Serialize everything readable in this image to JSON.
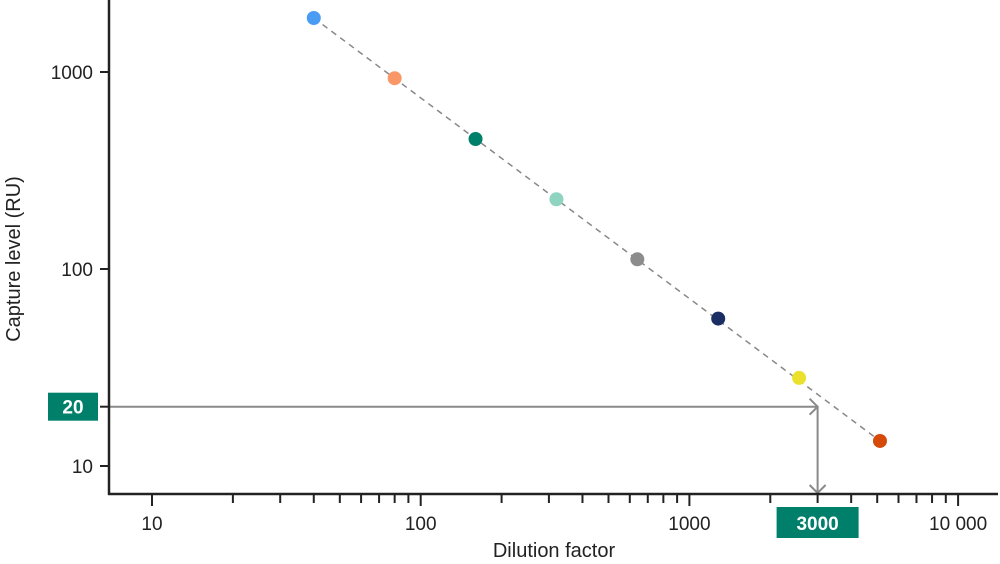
{
  "chart_data": {
    "type": "scatter",
    "title": "",
    "xlabel": "Dilution factor",
    "ylabel": "Capture level (RU)",
    "xscale": "log",
    "yscale": "log",
    "xlim": [
      7,
      14000
    ],
    "ylim": [
      6,
      2400
    ],
    "xticks": [
      {
        "value": 10,
        "label": "10"
      },
      {
        "value": 100,
        "label": "100"
      },
      {
        "value": 1000,
        "label": "1000"
      },
      {
        "value": 10000,
        "label": "10 000"
      }
    ],
    "yticks": [
      {
        "value": 10,
        "label": "10"
      },
      {
        "value": 100,
        "label": "100"
      },
      {
        "value": 1000,
        "label": "1000"
      }
    ],
    "grid": false,
    "points": [
      {
        "x": 40,
        "y": 1880,
        "color": "#4a9bf4"
      },
      {
        "x": 80,
        "y": 930,
        "color": "#f99866"
      },
      {
        "x": 160,
        "y": 457,
        "color": "#00806a"
      },
      {
        "x": 320,
        "y": 226,
        "color": "#8fd3c1"
      },
      {
        "x": 640,
        "y": 112,
        "color": "#8c8c8c"
      },
      {
        "x": 1280,
        "y": 56,
        "color": "#1a2e63"
      },
      {
        "x": 2560,
        "y": 28,
        "color": "#ebe12c"
      },
      {
        "x": 5120,
        "y": 13.4,
        "color": "#d54a08"
      }
    ],
    "fit_line": {
      "style": "dashed",
      "color": "#888888",
      "from": {
        "x": 40,
        "y": 1880
      },
      "to": {
        "x": 5120,
        "y": 13.4
      }
    },
    "annotations": {
      "y_value": {
        "value": 20,
        "label": "20"
      },
      "x_value": {
        "value": 3000,
        "label": "3000"
      },
      "color": "#00806a",
      "arrow_color": "#8a8a8a"
    }
  }
}
